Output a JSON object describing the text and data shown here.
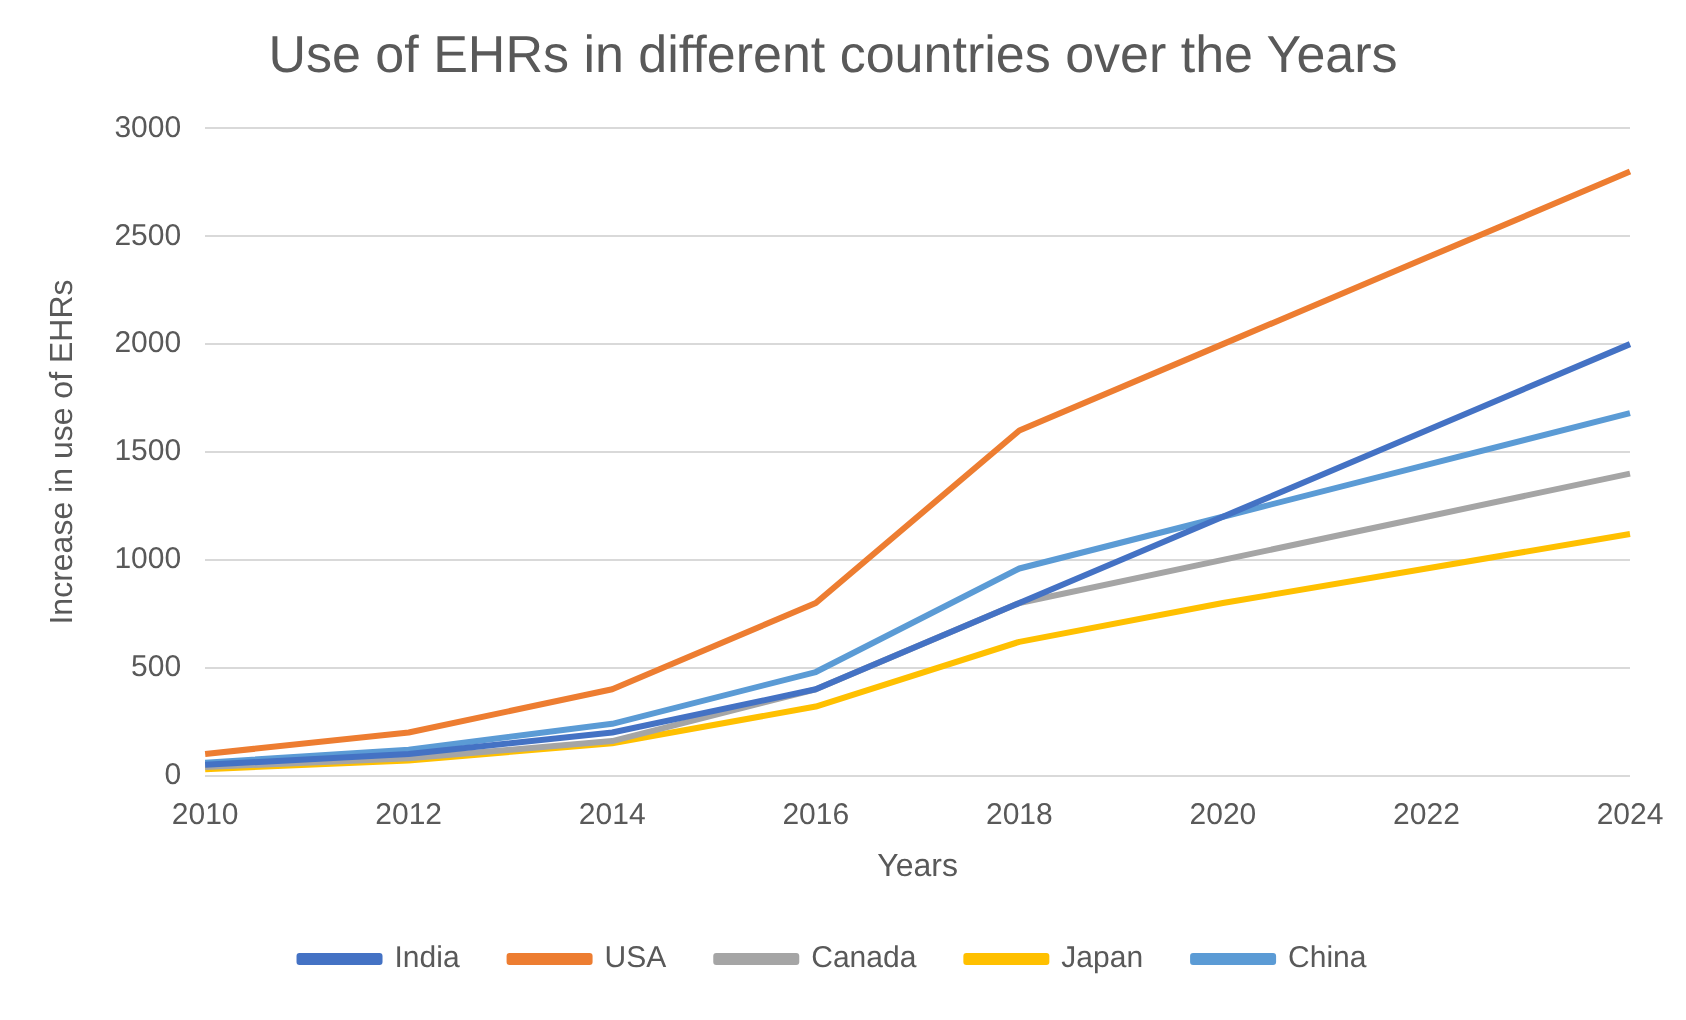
{
  "chart_data": {
    "type": "line",
    "title": "Use of EHRs in different countries over the Years",
    "xlabel": "Years",
    "ylabel": "Increase in use of EHRs",
    "categories": [
      "2010",
      "2012",
      "2014",
      "2016",
      "2018",
      "2020",
      "2022",
      "2024"
    ],
    "series": [
      {
        "name": "India",
        "color": "#4472c4",
        "values": [
          50,
          100,
          200,
          400,
          800,
          1200,
          1600,
          2000
        ]
      },
      {
        "name": "USA",
        "color": "#ed7d31",
        "values": [
          100,
          200,
          400,
          800,
          1600,
          2000,
          2400,
          2800
        ]
      },
      {
        "name": "Canada",
        "color": "#a5a5a5",
        "values": [
          40,
          80,
          160,
          400,
          800,
          1000,
          1200,
          1400
        ]
      },
      {
        "name": "Japan",
        "color": "#ffc000",
        "values": [
          30,
          70,
          150,
          320,
          620,
          800,
          960,
          1120
        ]
      },
      {
        "name": "China",
        "color": "#5b9bd5",
        "values": [
          60,
          120,
          240,
          480,
          960,
          1200,
          1440,
          1680
        ]
      }
    ],
    "ylim": [
      0,
      3000
    ],
    "yticks": [
      0,
      500,
      1000,
      1500,
      2000,
      2500,
      3000
    ],
    "grid": "y",
    "legend": "bottom",
    "marker": "none",
    "line_style": "solid"
  }
}
